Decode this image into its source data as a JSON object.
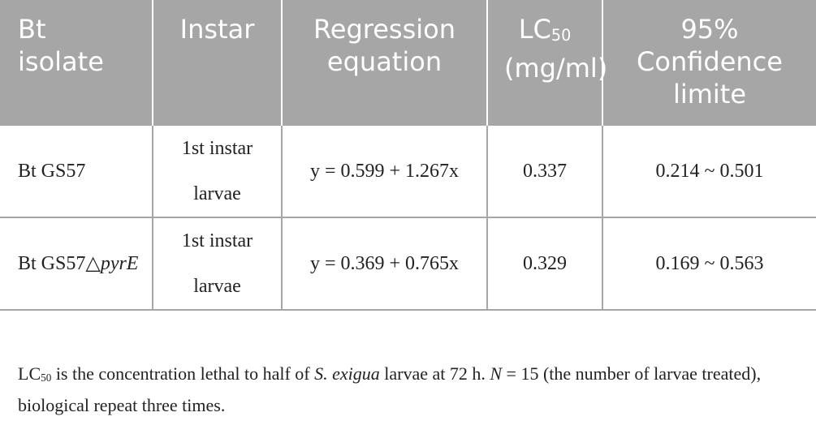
{
  "table": {
    "header": [
      "Bt isolate",
      "Instar",
      "Regression equation",
      [
        "LC",
        "50",
        " (mg/ml)"
      ],
      "95% Confidence limite"
    ],
    "rows": [
      [
        "Bt GS57",
        "1st instar larvae",
        "y = 0.599 + 1.267x",
        "0.337",
        "0.214 ~ 0.501"
      ],
      [
        [
          "Bt GS57△",
          "pyrE"
        ],
        "1st instar larvae",
        "y = 0.369 + 0.765x",
        "0.329",
        "0.169 ~ 0.563"
      ]
    ]
  },
  "footnote": [
    "LC",
    "50",
    " is the concentration lethal to half of ",
    "S. exigua",
    " larvae at 72 h. ",
    "N",
    " = 15 (the number of larvae treated), biological repeat three times."
  ]
}
